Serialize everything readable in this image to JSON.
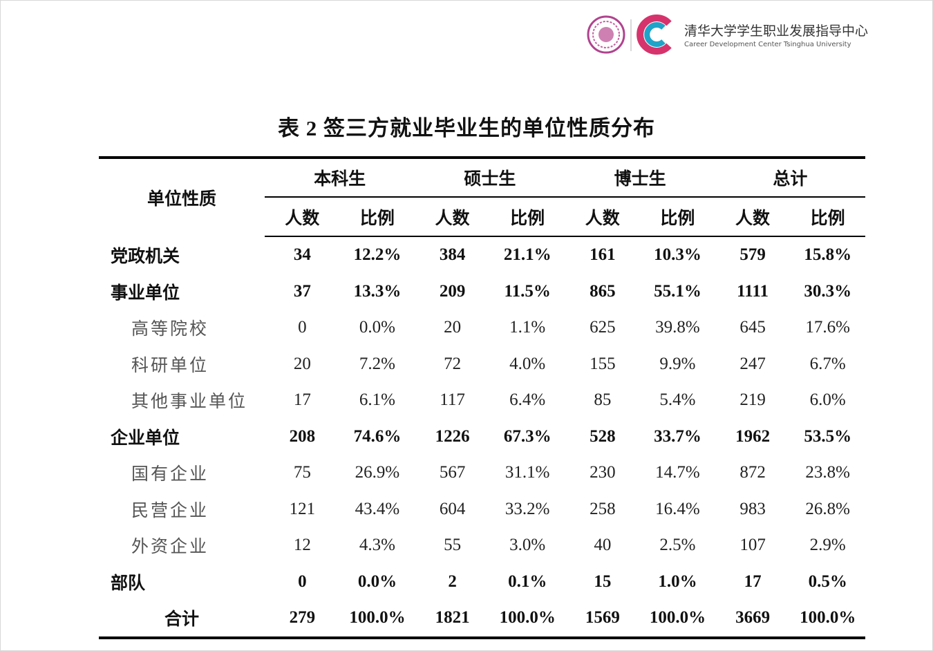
{
  "header": {
    "org_name": "清华大学学生职业发展指导中心",
    "org_name_en": "Career Development Center   Tsinghua University"
  },
  "table": {
    "title": "表 2 签三方就业毕业生的单位性质分布",
    "row_header": "单位性质",
    "groups": [
      "本科生",
      "硕士生",
      "博士生",
      "总计"
    ],
    "subheaders": [
      "人数",
      "比例",
      "人数",
      "比例",
      "人数",
      "比例",
      "人数",
      "比例"
    ],
    "rows": [
      [
        "党政机关",
        34,
        "12.2%",
        384,
        "21.1%",
        161,
        "10.3%",
        579,
        "15.8%"
      ],
      [
        "事业单位",
        37,
        "13.3%",
        209,
        "11.5%",
        865,
        "55.1%",
        1111,
        "30.3%"
      ],
      [
        "高等院校",
        0,
        "0.0%",
        20,
        "1.1%",
        625,
        "39.8%",
        645,
        "17.6%"
      ],
      [
        "科研单位",
        20,
        "7.2%",
        72,
        "4.0%",
        155,
        "9.9%",
        247,
        "6.7%"
      ],
      [
        "其他事业单位",
        17,
        "6.1%",
        117,
        "6.4%",
        85,
        "5.4%",
        219,
        "6.0%"
      ],
      [
        "企业单位",
        208,
        "74.6%",
        1226,
        "67.3%",
        528,
        "33.7%",
        1962,
        "53.5%"
      ],
      [
        "国有企业",
        75,
        "26.9%",
        567,
        "31.1%",
        230,
        "14.7%",
        872,
        "23.8%"
      ],
      [
        "民营企业",
        121,
        "43.4%",
        604,
        "33.2%",
        258,
        "16.4%",
        983,
        "26.8%"
      ],
      [
        "外资企业",
        12,
        "4.3%",
        55,
        "3.0%",
        40,
        "2.5%",
        107,
        "2.9%"
      ],
      [
        "部队",
        0,
        "0.0%",
        2,
        "0.1%",
        15,
        "1.0%",
        17,
        "0.5%"
      ],
      [
        "合计",
        279,
        "100.0%",
        1821,
        "100.0%",
        1569,
        "100.0%",
        3669,
        "100.0%"
      ]
    ]
  }
}
